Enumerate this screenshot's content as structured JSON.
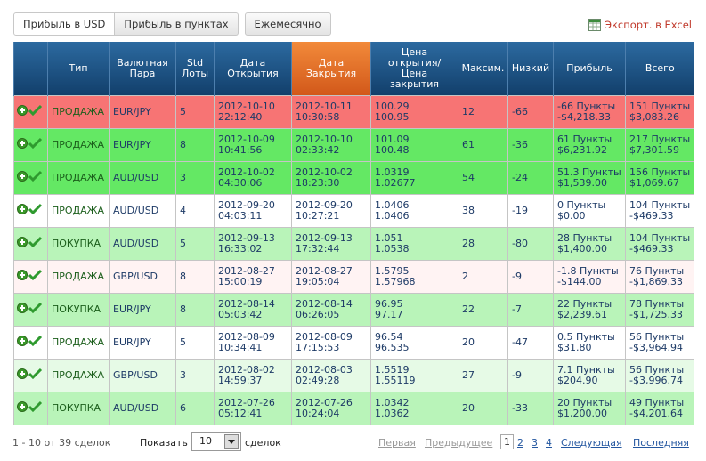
{
  "tabs": [
    "Прибыль в USD",
    "Прибыль в пунктах",
    "Ежемесячно"
  ],
  "export": "Экспорт. в Excel",
  "table": {
    "headers": [
      [],
      [
        "Тип"
      ],
      [
        "Валютная",
        "Пара"
      ],
      [
        "Std",
        "Лоты"
      ],
      [
        "Дата",
        "Открытия"
      ],
      [
        "Дата",
        "Закрытия"
      ],
      [
        "Цена",
        "открытия/",
        "Цена",
        "закрытия"
      ],
      [
        "Максим."
      ],
      [
        "Низкий"
      ],
      [
        "Прибыль"
      ],
      [
        "Всего"
      ]
    ],
    "rows": [
      {
        "color": "#f77474",
        "cells": [
          [
            "ПРОДАЖА"
          ],
          [
            "EUR/JPY"
          ],
          [
            "5"
          ],
          [
            "2012-10-10",
            "22:12:40"
          ],
          [
            "2012-10-11",
            "10:30:58"
          ],
          [
            "100.29",
            "100.95"
          ],
          [
            "12"
          ],
          [
            "-66"
          ],
          [
            "-66 Пункты",
            "-$4,218.33"
          ],
          [
            "151 Пункты",
            "$3,083.26"
          ]
        ]
      },
      {
        "color": "#64e864",
        "cells": [
          [
            "ПРОДАЖА"
          ],
          [
            "EUR/JPY"
          ],
          [
            "8"
          ],
          [
            "2012-10-09",
            "10:41:56"
          ],
          [
            "2012-10-10",
            "02:33:42"
          ],
          [
            "101.09",
            "100.48"
          ],
          [
            "61"
          ],
          [
            "-36"
          ],
          [
            "61 Пункты",
            "$6,231.92"
          ],
          [
            "217 Пункты",
            "$7,301.59"
          ]
        ]
      },
      {
        "color": "#64e864",
        "cells": [
          [
            "ПРОДАЖА"
          ],
          [
            "AUD/USD"
          ],
          [
            "3"
          ],
          [
            "2012-10-02",
            "04:30:06"
          ],
          [
            "2012-10-02",
            "18:23:30"
          ],
          [
            "1.0319",
            "1.02677"
          ],
          [
            "54"
          ],
          [
            "-24"
          ],
          [
            "51.3 Пункты",
            "$1,539.00"
          ],
          [
            "156 Пункты",
            "$1,069.67"
          ]
        ]
      },
      {
        "color": "#ffffff",
        "cells": [
          [
            "ПРОДАЖА"
          ],
          [
            "AUD/USD"
          ],
          [
            "4"
          ],
          [
            "2012-09-20",
            "04:03:11"
          ],
          [
            "2012-09-20",
            "10:27:21"
          ],
          [
            "1.0406",
            "1.0406"
          ],
          [
            "38"
          ],
          [
            "-19"
          ],
          [
            "0 Пункты",
            "$0.00"
          ],
          [
            "104 Пункты",
            "-$469.33"
          ]
        ]
      },
      {
        "color": "#b9f4b9",
        "cells": [
          [
            "ПОКУПКА"
          ],
          [
            "AUD/USD"
          ],
          [
            "5"
          ],
          [
            "2012-09-13",
            "16:33:02"
          ],
          [
            "2012-09-13",
            "17:32:44"
          ],
          [
            "1.051",
            "1.0538"
          ],
          [
            "28"
          ],
          [
            "-80"
          ],
          [
            "28 Пункты",
            "$1,400.00"
          ],
          [
            "104 Пункты",
            "-$469.33"
          ]
        ]
      },
      {
        "color": "#fff3f3",
        "cells": [
          [
            "ПРОДАЖА"
          ],
          [
            "GBP/USD"
          ],
          [
            "8"
          ],
          [
            "2012-08-27",
            "15:00:19"
          ],
          [
            "2012-08-27",
            "19:05:04"
          ],
          [
            "1.5795",
            "1.57968"
          ],
          [
            "2"
          ],
          [
            "-9"
          ],
          [
            "-1.8 Пункты",
            "-$144.00"
          ],
          [
            "76 Пункты",
            "-$1,869.33"
          ]
        ]
      },
      {
        "color": "#b9f4b9",
        "cells": [
          [
            "ПОКУПКА"
          ],
          [
            "EUR/JPY"
          ],
          [
            "8"
          ],
          [
            "2012-08-14",
            "05:03:42"
          ],
          [
            "2012-08-14",
            "06:26:05"
          ],
          [
            "96.95",
            "97.17"
          ],
          [
            "22"
          ],
          [
            "-7"
          ],
          [
            "22 Пункты",
            "$2,239.61"
          ],
          [
            "78 Пункты",
            "-$1,725.33"
          ]
        ]
      },
      {
        "color": "#ffffff",
        "cells": [
          [
            "ПРОДАЖА"
          ],
          [
            "EUR/JPY"
          ],
          [
            "5"
          ],
          [
            "2012-08-09",
            "10:34:41"
          ],
          [
            "2012-08-09",
            "17:15:53"
          ],
          [
            "96.54",
            "96.535"
          ],
          [
            "20"
          ],
          [
            "-47"
          ],
          [
            "0.5 Пункты",
            "$31.80"
          ],
          [
            "56 Пункты",
            "-$3,964.94"
          ]
        ]
      },
      {
        "color": "#e6fae6",
        "cells": [
          [
            "ПРОДАЖА"
          ],
          [
            "GBP/USD"
          ],
          [
            "3"
          ],
          [
            "2012-08-02",
            "14:59:37"
          ],
          [
            "2012-08-03",
            "02:49:28"
          ],
          [
            "1.5519",
            "1.55119"
          ],
          [
            "27"
          ],
          [
            "-9"
          ],
          [
            "7.1 Пункты",
            "$204.90"
          ],
          [
            "56 Пункты",
            "-$3,996.74"
          ]
        ]
      },
      {
        "color": "#b9f4b9",
        "cells": [
          [
            "ПОКУПКА"
          ],
          [
            "AUD/USD"
          ],
          [
            "6"
          ],
          [
            "2012-07-26",
            "05:12:41"
          ],
          [
            "2012-07-26",
            "10:24:04"
          ],
          [
            "1.0342",
            "1.0362"
          ],
          [
            "20"
          ],
          [
            "-33"
          ],
          [
            "20 Пункты",
            "$1,200.00"
          ],
          [
            "49 Пункты",
            "-$4,201.64"
          ]
        ]
      }
    ]
  },
  "footer": {
    "summary": "1 - 10 от 39 сделок",
    "show": "Показать",
    "page_size": "10",
    "unit": "сделок",
    "first": "Первая",
    "prev": "Предыдущее",
    "pages": [
      "1",
      "2",
      "3",
      "4"
    ],
    "next": "Следующая",
    "last": "Последняя"
  }
}
